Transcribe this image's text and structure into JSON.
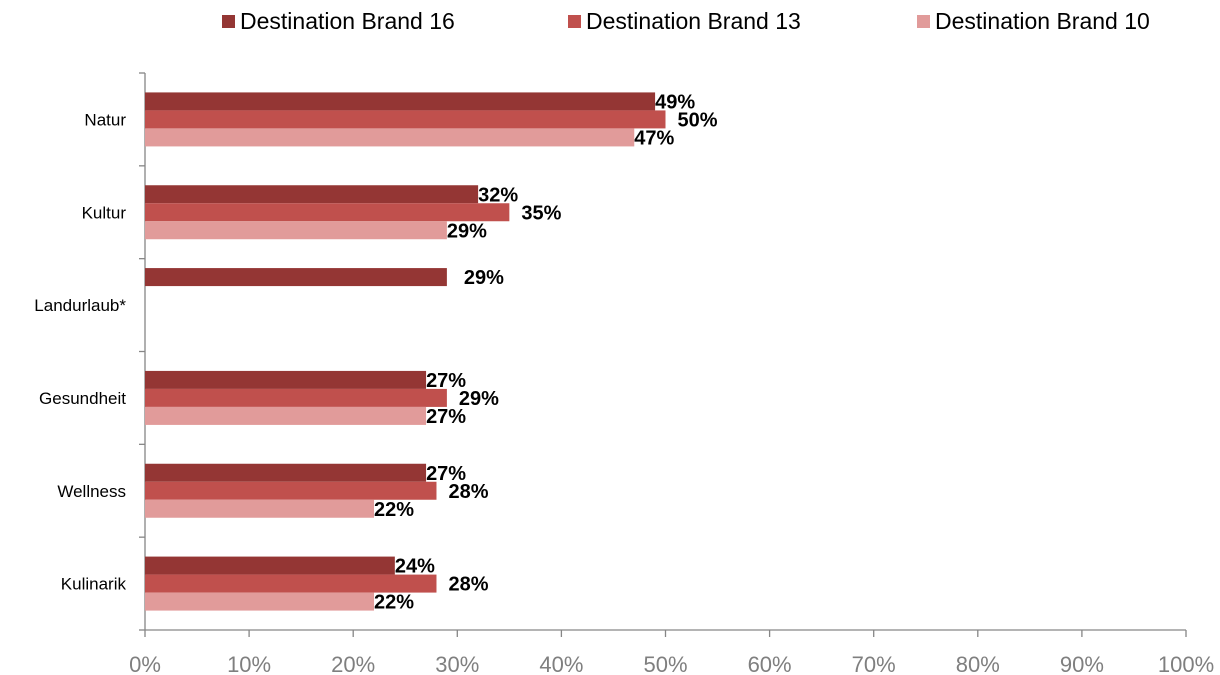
{
  "chart_data": {
    "type": "bar",
    "orientation": "horizontal",
    "categories": [
      "Natur",
      "Kultur",
      "Landurlaub*",
      "Gesundheit",
      "Wellness",
      "Kulinarik"
    ],
    "series": [
      {
        "name": "Destination Brand 16",
        "color": "#943634",
        "values": [
          49,
          32,
          29,
          27,
          27,
          24
        ],
        "labels": [
          "49%",
          "32%",
          "29%",
          "27%",
          "27%",
          "24%"
        ]
      },
      {
        "name": "Destination Brand 13",
        "color": "#c0504d",
        "values": [
          50,
          35,
          null,
          29,
          28,
          28
        ],
        "labels": [
          "50%",
          "35%",
          "",
          "29%",
          "28%",
          "28%"
        ]
      },
      {
        "name": "Destination Brand 10",
        "color": "#e19b9a",
        "values": [
          47,
          29,
          null,
          27,
          22,
          22
        ],
        "labels": [
          "47%",
          "29%",
          "",
          "27%",
          "22%",
          "22%"
        ]
      }
    ],
    "xlim": [
      0,
      100
    ],
    "xticks": [
      "0%",
      "10%",
      "20%",
      "30%",
      "40%",
      "50%",
      "60%",
      "70%",
      "80%",
      "90%",
      "100%"
    ],
    "grid": false,
    "legend_position": "top"
  }
}
